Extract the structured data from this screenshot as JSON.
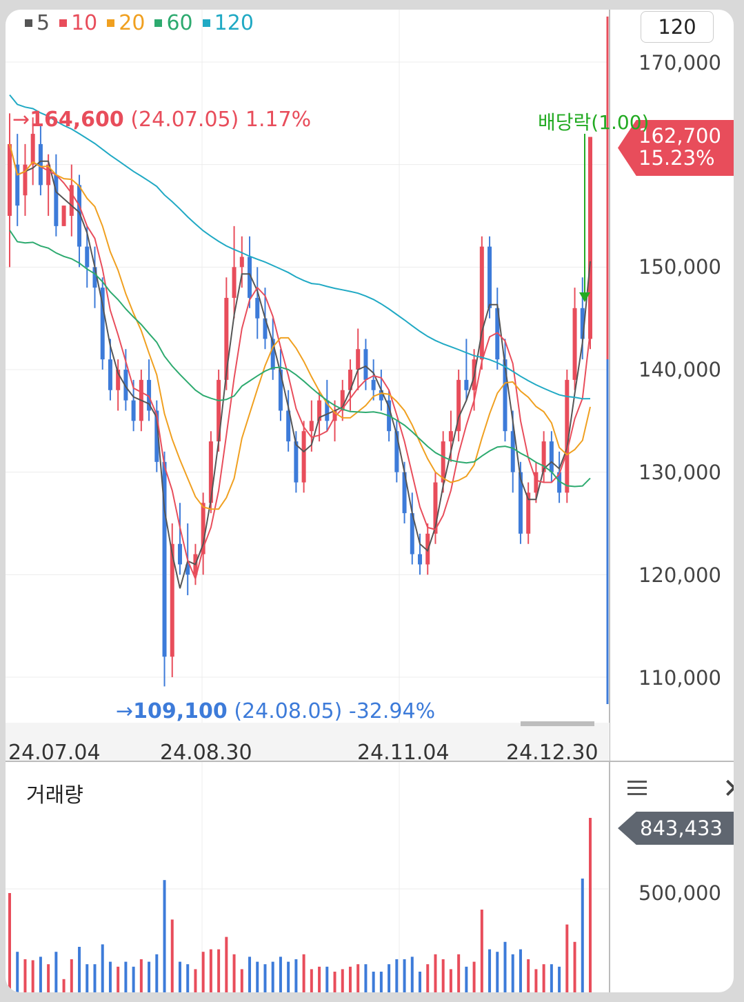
{
  "legend": [
    {
      "label": "5",
      "color": "#555555"
    },
    {
      "label": "10",
      "color": "#e84d5b"
    },
    {
      "label": "20",
      "color": "#f0a020"
    },
    {
      "label": "60",
      "color": "#2daa6f"
    },
    {
      "label": "120",
      "color": "#20a9c4"
    }
  ],
  "period_button": "120",
  "current_price": {
    "price": "162,700",
    "change": "15.23%"
  },
  "high_annotation": {
    "arrow": "→",
    "value": "164,600",
    "detail": "(24.07.05) 1.17%"
  },
  "low_annotation": {
    "arrow": "→",
    "value": "109,100",
    "detail": "(24.08.05) -32.94%"
  },
  "dividend_label": "배당락(1.00)",
  "volume_panel": {
    "title": "거래량",
    "current_volume": "843,433",
    "tick": "500,000"
  },
  "chart_data": {
    "type": "candlestick",
    "y_ticks": [
      "170,000",
      "150,000",
      "140,000",
      "130,000",
      "120,000",
      "110,000"
    ],
    "ylim": [
      105000,
      173000
    ],
    "x_ticks": [
      "24.07.04",
      "24.08.30",
      "24.11.04",
      "24.12.30"
    ],
    "ohlc": [
      [
        155000,
        165000,
        150000,
        162000
      ],
      [
        160000,
        163000,
        154000,
        156000
      ],
      [
        157000,
        162000,
        155000,
        160000
      ],
      [
        160000,
        164600,
        158000,
        163000
      ],
      [
        162000,
        164000,
        157000,
        158000
      ],
      [
        158000,
        161000,
        155000,
        160000
      ],
      [
        159000,
        161000,
        153000,
        154000
      ],
      [
        154000,
        156000
      ],
      [
        155000,
        160000,
        153000,
        158000
      ],
      [
        158000,
        159000,
        150000,
        152000
      ],
      [
        152000,
        154000,
        148000,
        150000
      ],
      [
        150000,
        152000,
        146000,
        148000
      ],
      [
        148000,
        149000,
        140000,
        141000
      ],
      [
        141000,
        143000,
        137000,
        138000
      ],
      [
        138000,
        141000,
        136000,
        140000
      ],
      [
        140000,
        142000,
        136000,
        137000
      ],
      [
        137000,
        139000,
        134000,
        135000
      ],
      [
        135000,
        140000,
        134000,
        139000
      ],
      [
        139000,
        141000,
        135000,
        136000
      ],
      [
        136000,
        137000,
        130000,
        131000
      ],
      [
        131000,
        132000,
        109100,
        112000
      ],
      [
        112000,
        125000,
        110000,
        123000
      ],
      [
        123000,
        127000,
        120000,
        121000
      ],
      [
        121000,
        125000,
        118000,
        120000
      ],
      [
        120000,
        123000,
        119000,
        122000
      ],
      [
        122000,
        128000,
        120000,
        127000
      ],
      [
        127000,
        134000,
        126000,
        133000
      ],
      [
        133000,
        140000,
        132000,
        139000
      ],
      [
        139000,
        149000,
        138000,
        147000
      ],
      [
        147000,
        154000,
        145000,
        150000
      ],
      [
        150000,
        153000,
        148000,
        151000
      ],
      [
        151000,
        153000,
        146000,
        147000
      ],
      [
        147000,
        150000,
        143000,
        145000
      ],
      [
        145000,
        148000,
        142000,
        143000
      ],
      [
        143000,
        145000,
        139000,
        140000
      ],
      [
        140000,
        142000,
        135000,
        136000
      ],
      [
        136000,
        138000,
        132000,
        133000
      ],
      [
        133000,
        134000,
        128000,
        129000
      ],
      [
        129000,
        135000,
        128000,
        134000
      ],
      [
        134000,
        137000,
        132000,
        135000
      ],
      [
        135000,
        138000,
        133000,
        137000
      ],
      [
        137000,
        139000,
        134000,
        135000
      ],
      [
        135000,
        137000,
        133000,
        136000
      ],
      [
        136000,
        139000,
        135000,
        138000
      ],
      [
        138000,
        141000,
        136000,
        140000
      ],
      [
        140000,
        144000,
        138000,
        142000
      ],
      [
        142000,
        143000,
        138000,
        139000
      ],
      [
        139000,
        141000,
        137000,
        138000
      ],
      [
        138000,
        140000,
        136000,
        137000
      ],
      [
        137000,
        138000,
        133000,
        134000
      ],
      [
        134000,
        135000,
        129000,
        130000
      ],
      [
        130000,
        131000,
        125000,
        126000
      ],
      [
        126000,
        128000,
        121000,
        122000
      ],
      [
        122000,
        124000,
        120000,
        121000
      ],
      [
        121000,
        125000,
        120000,
        124000
      ],
      [
        124000,
        130000,
        123000,
        129000
      ],
      [
        129000,
        134000,
        128000,
        133000
      ],
      [
        133000,
        136000,
        131000,
        134000
      ],
      [
        134000,
        140000,
        133000,
        139000
      ],
      [
        139000,
        143000,
        137000,
        138000
      ],
      [
        138000,
        142000,
        136000,
        141000
      ],
      [
        141000,
        153000,
        140000,
        152000
      ],
      [
        152000,
        153000,
        145000,
        146000
      ],
      [
        146000,
        148000,
        140000,
        141000
      ],
      [
        141000,
        143000,
        133000,
        134000
      ],
      [
        134000,
        136000,
        128000,
        130000
      ],
      [
        130000,
        131000,
        123000,
        124000
      ],
      [
        124000,
        129000,
        123000,
        128000
      ],
      [
        128000,
        131000,
        127000,
        130000
      ],
      [
        130000,
        134000,
        129000,
        133000
      ],
      [
        133000,
        134000,
        129000,
        130000
      ],
      [
        130000,
        132000,
        127000,
        128000
      ],
      [
        128000,
        140000,
        127000,
        139000
      ],
      [
        139000,
        148000,
        138000,
        146000
      ],
      [
        146000,
        149000,
        141000,
        143000
      ],
      [
        143000,
        162700,
        142000,
        162700
      ]
    ],
    "volume_max": 843433,
    "volume_tick": 500000
  }
}
